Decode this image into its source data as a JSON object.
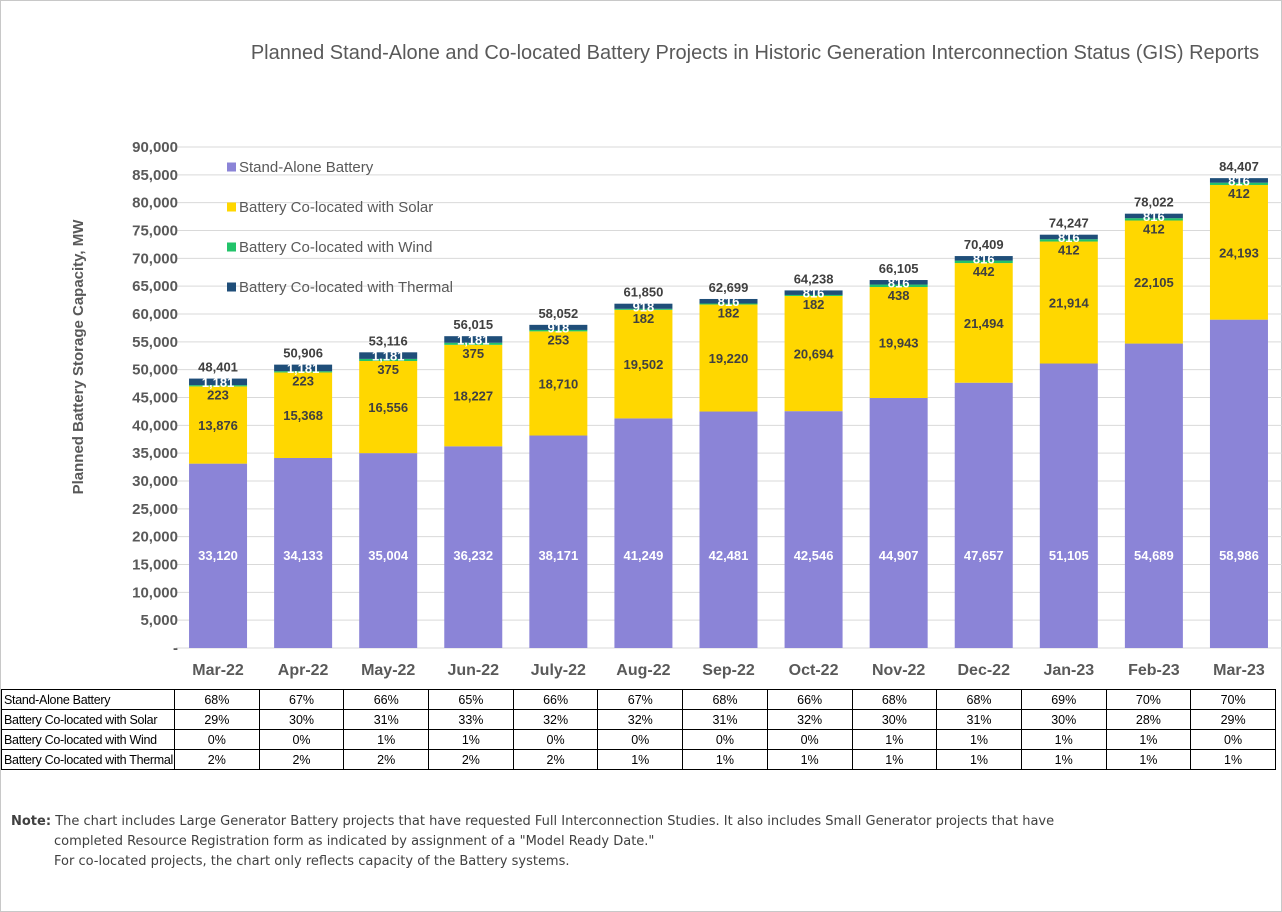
{
  "chart_data": {
    "type": "bar",
    "stacked": true,
    "title": "Planned Stand-Alone and Co-located Battery Projects in Historic Generation Interconnection Status (GIS) Reports",
    "ylabel": "Planned Battery Storage Capacity, MW",
    "xlabel": "",
    "ylim": [
      0,
      90000
    ],
    "yticks": [
      "-",
      "5,000",
      "10,000",
      "15,000",
      "20,000",
      "25,000",
      "30,000",
      "35,000",
      "40,000",
      "45,000",
      "50,000",
      "55,000",
      "60,000",
      "65,000",
      "70,000",
      "75,000",
      "80,000",
      "85,000",
      "90,000"
    ],
    "grid": true,
    "legend_position": "top-left",
    "categories": [
      "Mar-22",
      "Apr-22",
      "May-22",
      "Jun-22",
      "July-22",
      "Aug-22",
      "Sep-22",
      "Oct-22",
      "Nov-22",
      "Dec-22",
      "Jan-23",
      "Feb-23",
      "Mar-23"
    ],
    "series": [
      {
        "name": "Stand-Alone Battery",
        "color": "#8b84d7",
        "values": [
          33120,
          34133,
          35004,
          36232,
          38171,
          41249,
          42481,
          42546,
          44907,
          47657,
          51105,
          54689,
          58986
        ],
        "labels": [
          "33,120",
          "34,133",
          "35,004",
          "36,232",
          "38,171",
          "41,249",
          "42,481",
          "42,546",
          "44,907",
          "47,657",
          "51,105",
          "54,689",
          "58,986"
        ]
      },
      {
        "name": "Battery Co-located with Solar",
        "color": "#ffd700",
        "values": [
          13876,
          15368,
          16556,
          18227,
          18710,
          19502,
          19220,
          20694,
          19943,
          21494,
          21914,
          22105,
          24193
        ],
        "labels": [
          "13,876",
          "15,368",
          "16,556",
          "18,227",
          "18,710",
          "19,502",
          "19,220",
          "20,694",
          "19,943",
          "21,494",
          "21,914",
          "22,105",
          "24,193"
        ]
      },
      {
        "name": "Battery Co-located with Wind",
        "color": "#22c36a",
        "values": [
          223,
          223,
          375,
          375,
          253,
          182,
          182,
          182,
          438,
          442,
          412,
          412,
          412
        ],
        "labels": [
          "223",
          "223",
          "375",
          "375",
          "253",
          "182",
          "182",
          "182",
          "438",
          "442",
          "412",
          "412",
          "412"
        ]
      },
      {
        "name": "Battery Co-located with Thermal",
        "color": "#1f4e79",
        "values": [
          1181,
          1181,
          1181,
          1181,
          918,
          918,
          816,
          816,
          816,
          816,
          816,
          816,
          816
        ],
        "labels": [
          "1,181",
          "1,181",
          "1,181",
          "1,181",
          "918",
          "918",
          "816",
          "816",
          "816",
          "816",
          "816",
          "816",
          "816"
        ]
      }
    ],
    "totals": [
      48401,
      50906,
      53116,
      56015,
      58052,
      61850,
      62699,
      64238,
      66105,
      70409,
      74247,
      78022,
      84407
    ],
    "total_labels": [
      "48,401",
      "50,906",
      "53,116",
      "56,015",
      "58,052",
      "61,850",
      "62,699",
      "64,238",
      "66,105",
      "70,409",
      "74,247",
      "78,022",
      "84,407"
    ]
  },
  "table": {
    "rows": [
      {
        "name": "Stand-Alone Battery",
        "values": [
          "68%",
          "67%",
          "66%",
          "65%",
          "66%",
          "67%",
          "68%",
          "66%",
          "68%",
          "68%",
          "69%",
          "70%",
          "70%"
        ]
      },
      {
        "name": "Battery Co-located with Solar",
        "values": [
          "29%",
          "30%",
          "31%",
          "33%",
          "32%",
          "32%",
          "31%",
          "32%",
          "30%",
          "31%",
          "30%",
          "28%",
          "29%"
        ]
      },
      {
        "name": "Battery Co-located with Wind",
        "values": [
          "0%",
          "0%",
          "1%",
          "1%",
          "0%",
          "0%",
          "0%",
          "0%",
          "1%",
          "1%",
          "1%",
          "1%",
          "0%"
        ]
      },
      {
        "name": "Battery Co-located with Thermal",
        "values": [
          "2%",
          "2%",
          "2%",
          "2%",
          "2%",
          "1%",
          "1%",
          "1%",
          "1%",
          "1%",
          "1%",
          "1%",
          "1%"
        ]
      }
    ]
  },
  "note": {
    "label": "Note:",
    "line1": "The chart includes Large Generator Battery projects that have requested Full Interconnection Studies. It also includes Small Generator projects that have",
    "line2": "completed Resource Registration form as indicated by assignment of a \"Model Ready Date.\"",
    "line3": "For co-located projects, the chart only reflects capacity of the Battery systems."
  }
}
